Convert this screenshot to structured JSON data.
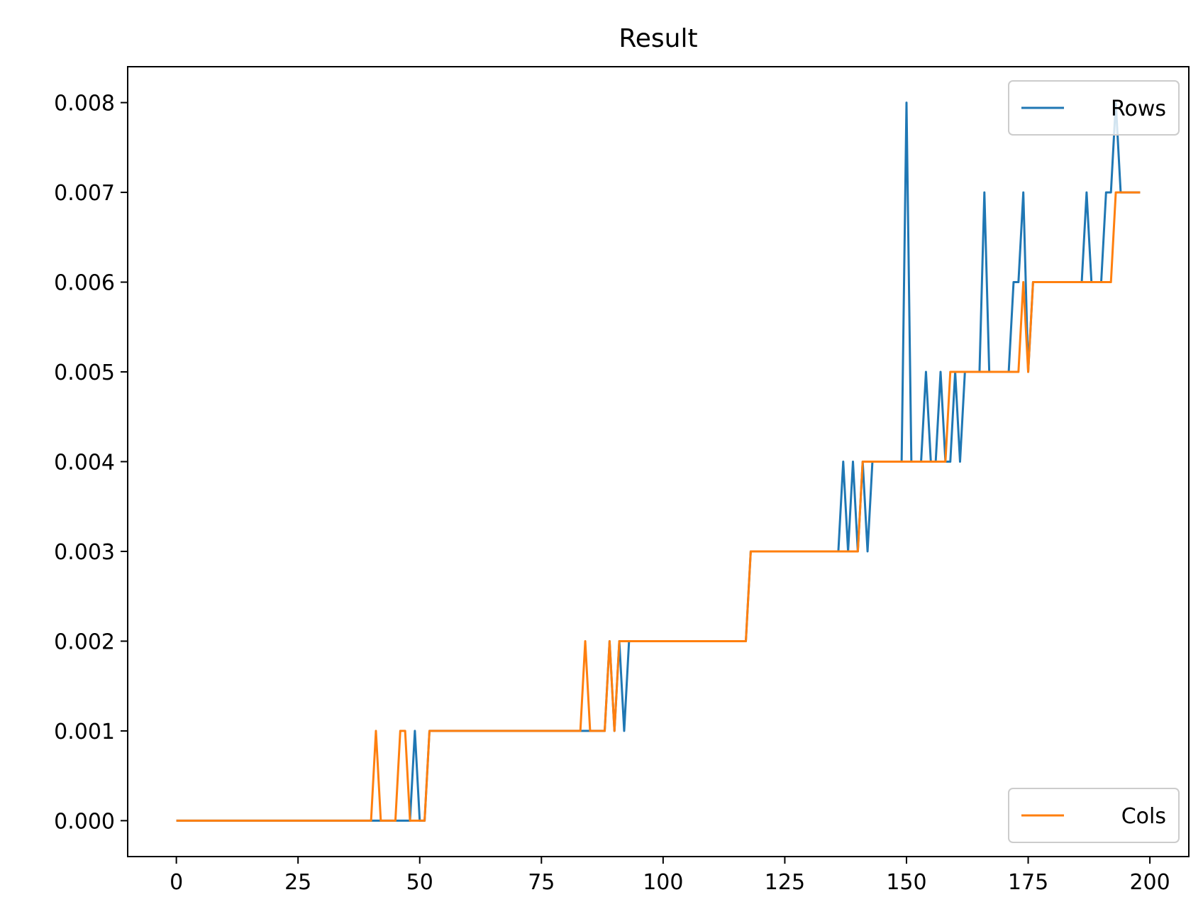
{
  "chart_data": {
    "type": "line",
    "title": "Result",
    "xlabel": "",
    "ylabel": "",
    "xlim": [
      -10,
      208
    ],
    "ylim": [
      -0.0004,
      0.0084
    ],
    "xticks": [
      0,
      25,
      50,
      75,
      100,
      125,
      150,
      175,
      200
    ],
    "xtick_labels": [
      "0",
      "25",
      "50",
      "75",
      "100",
      "125",
      "150",
      "175",
      "200"
    ],
    "yticks": [
      0,
      0.001,
      0.002,
      0.003,
      0.004,
      0.005,
      0.006,
      0.007,
      0.008
    ],
    "ytick_labels": [
      "0.000",
      "0.001",
      "0.002",
      "0.003",
      "0.004",
      "0.005",
      "0.006",
      "0.007",
      "0.008"
    ],
    "grid": false,
    "series": [
      {
        "name": "Rows",
        "color": "#1f77b4",
        "legend_loc": "upper right",
        "points": [
          [
            0,
            0
          ],
          [
            48,
            0
          ],
          [
            49,
            0.001
          ],
          [
            50,
            0
          ],
          [
            51,
            0
          ],
          [
            52,
            0.001
          ],
          [
            88,
            0.001
          ],
          [
            89,
            0.002
          ],
          [
            90,
            0.001
          ],
          [
            91,
            0.002
          ],
          [
            92,
            0.001
          ],
          [
            93,
            0.002
          ],
          [
            94,
            0.002
          ],
          [
            117,
            0.002
          ],
          [
            118,
            0.003
          ],
          [
            136,
            0.003
          ],
          [
            137,
            0.004
          ],
          [
            138,
            0.003
          ],
          [
            139,
            0.004
          ],
          [
            140,
            0.003
          ],
          [
            141,
            0.004
          ],
          [
            142,
            0.003
          ],
          [
            143,
            0.004
          ],
          [
            149,
            0.004
          ],
          [
            150,
            0.008
          ],
          [
            151,
            0.004
          ],
          [
            153,
            0.004
          ],
          [
            154,
            0.005
          ],
          [
            155,
            0.004
          ],
          [
            156,
            0.004
          ],
          [
            157,
            0.005
          ],
          [
            158,
            0.004
          ],
          [
            159,
            0.004
          ],
          [
            160,
            0.005
          ],
          [
            161,
            0.004
          ],
          [
            162,
            0.005
          ],
          [
            165,
            0.005
          ],
          [
            166,
            0.007
          ],
          [
            167,
            0.005
          ],
          [
            171,
            0.005
          ],
          [
            172,
            0.006
          ],
          [
            173,
            0.006
          ],
          [
            174,
            0.007
          ],
          [
            175,
            0.005
          ],
          [
            176,
            0.006
          ],
          [
            186,
            0.006
          ],
          [
            187,
            0.007
          ],
          [
            188,
            0.006
          ],
          [
            190,
            0.006
          ],
          [
            191,
            0.007
          ],
          [
            192,
            0.007
          ],
          [
            193,
            0.008
          ],
          [
            194,
            0.007
          ],
          [
            198,
            0.007
          ]
        ]
      },
      {
        "name": "Cols",
        "color": "#ff7f0e",
        "legend_loc": "lower right",
        "points": [
          [
            0,
            0
          ],
          [
            40,
            0
          ],
          [
            41,
            0.001
          ],
          [
            42,
            0
          ],
          [
            45,
            0
          ],
          [
            46,
            0.001
          ],
          [
            47,
            0.001
          ],
          [
            48,
            0
          ],
          [
            51,
            0
          ],
          [
            52,
            0.001
          ],
          [
            83,
            0.001
          ],
          [
            84,
            0.002
          ],
          [
            85,
            0.001
          ],
          [
            88,
            0.001
          ],
          [
            89,
            0.002
          ],
          [
            90,
            0.001
          ],
          [
            91,
            0.002
          ],
          [
            117,
            0.002
          ],
          [
            118,
            0.003
          ],
          [
            140,
            0.003
          ],
          [
            141,
            0.004
          ],
          [
            158,
            0.004
          ],
          [
            159,
            0.005
          ],
          [
            173,
            0.005
          ],
          [
            174,
            0.006
          ],
          [
            175,
            0.005
          ],
          [
            176,
            0.006
          ],
          [
            192,
            0.006
          ],
          [
            193,
            0.007
          ],
          [
            198,
            0.007
          ]
        ]
      }
    ]
  }
}
